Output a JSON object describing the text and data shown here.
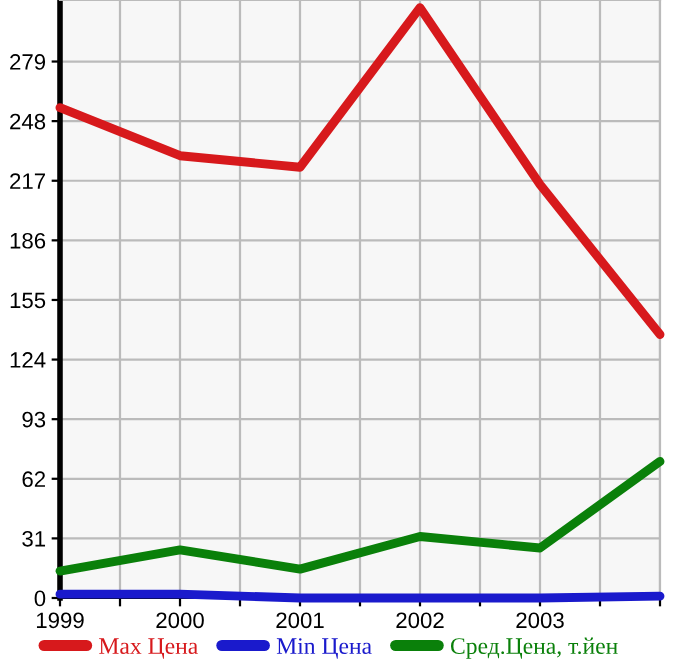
{
  "chart_data": {
    "type": "line",
    "x": [
      1999,
      2000,
      2001,
      2002,
      2003,
      2004
    ],
    "series": [
      {
        "name": "Max Цена",
        "color": "#d7191c",
        "values": [
          255,
          230,
          224,
          307,
          215,
          137
        ]
      },
      {
        "name": "Min Цена",
        "color": "#1a1acc",
        "values": [
          2,
          2,
          0,
          0,
          0,
          1
        ]
      },
      {
        "name": "Сред.Цена, т.йен",
        "color": "#0a800a",
        "values": [
          14,
          25,
          15,
          32,
          26,
          71
        ]
      }
    ],
    "xlim": [
      1999,
      2004
    ],
    "xticks": [
      1999,
      {
        "value": 1999.5,
        "label": null
      },
      2000,
      {
        "value": 2000.5,
        "label": null
      },
      2001,
      {
        "value": 2001.5,
        "label": null
      },
      2002,
      {
        "value": 2002.5,
        "label": null
      },
      2003,
      {
        "value": 2003.5,
        "label": null
      },
      {
        "value": 2004,
        "label": null
      }
    ],
    "ylim": [
      0,
      311
    ],
    "yticks": [
      0,
      31,
      62,
      93,
      124,
      155,
      186,
      217,
      248,
      279
    ],
    "grid": true,
    "legend": "bottom",
    "marker": "none",
    "line_style": "solid"
  }
}
